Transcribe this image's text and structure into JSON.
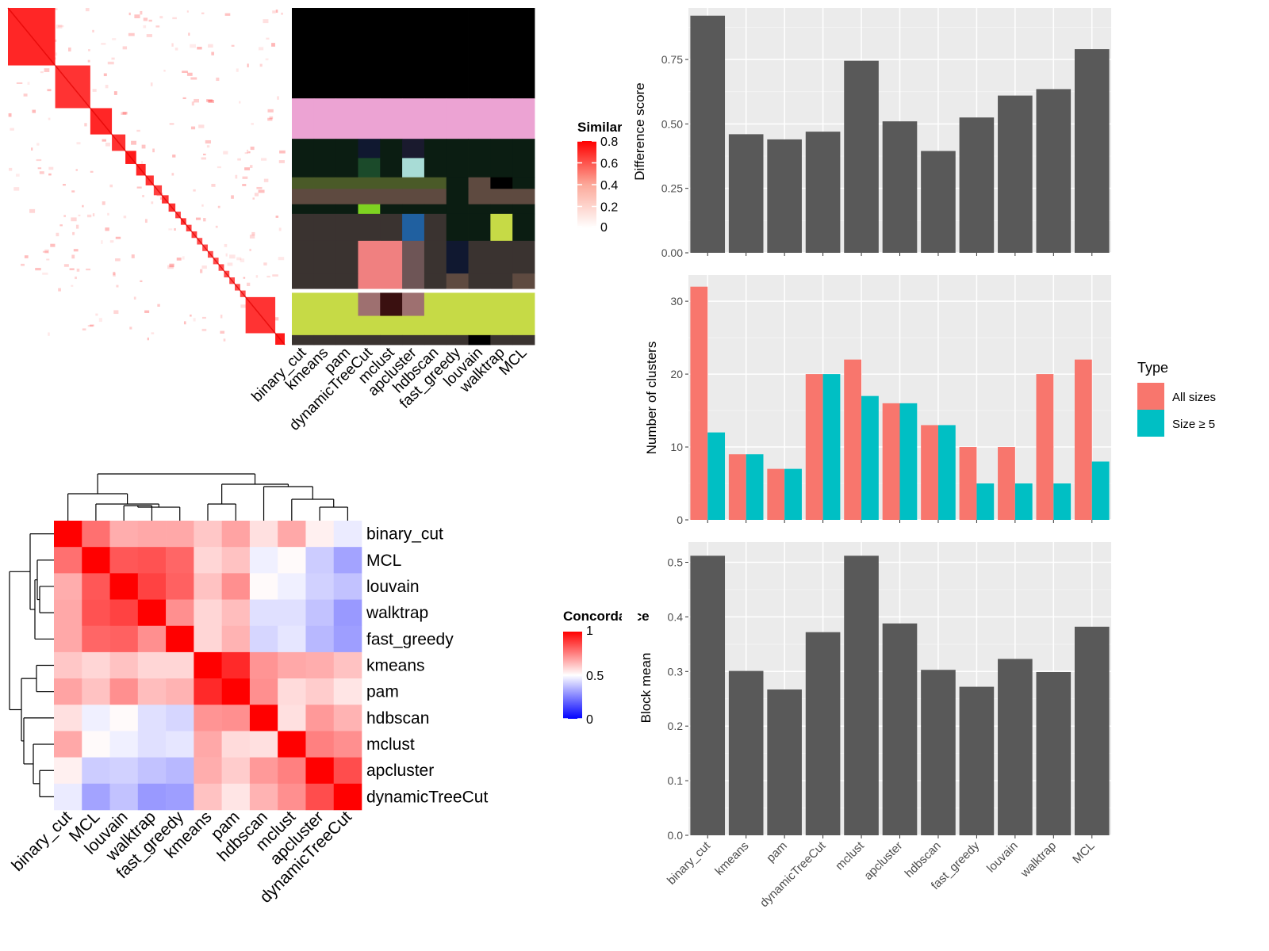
{
  "chart_data": [
    {
      "type": "heatmap",
      "panel": "similarity-heatmap",
      "legend_title": "Similarity",
      "legend_ticks": [
        "0",
        "0.2",
        "0.4",
        "0.6",
        "0.8"
      ],
      "column_labels": [
        "binary_cut",
        "kmeans",
        "pam",
        "dynamicTreeCut",
        "mclust",
        "apcluster",
        "hdbscan",
        "fast_greedy",
        "louvain",
        "walktrap",
        "MCL"
      ],
      "blocks": [
        {
          "size": 0.175,
          "intensity": 0.85
        },
        {
          "size": 0.13,
          "intensity": 0.8
        },
        {
          "size": 0.08,
          "intensity": 0.85
        },
        {
          "size": 0.05,
          "intensity": 0.8
        },
        {
          "size": 0.04,
          "intensity": 0.9
        },
        {
          "size": 0.035,
          "intensity": 0.85
        },
        {
          "size": 0.03,
          "intensity": 0.8
        },
        {
          "size": 0.03,
          "intensity": 0.75
        },
        {
          "size": 0.025,
          "intensity": 0.8
        },
        {
          "size": 0.025,
          "intensity": 0.8
        },
        {
          "size": 0.02,
          "intensity": 0.75
        },
        {
          "size": 0.02,
          "intensity": 0.8
        },
        {
          "size": 0.02,
          "intensity": 0.75
        },
        {
          "size": 0.02,
          "intensity": 0.75
        },
        {
          "size": 0.02,
          "intensity": 0.7
        },
        {
          "size": 0.02,
          "intensity": 0.7
        },
        {
          "size": 0.02,
          "intensity": 0.7
        },
        {
          "size": 0.02,
          "intensity": 0.7
        },
        {
          "size": 0.02,
          "intensity": 0.7
        },
        {
          "size": 0.02,
          "intensity": 0.7
        },
        {
          "size": 0.02,
          "intensity": 0.7
        },
        {
          "size": 0.02,
          "intensity": 0.7
        },
        {
          "size": 0.02,
          "intensity": 0.7
        },
        {
          "size": 0.11,
          "intensity": 0.8
        },
        {
          "size": 0.035,
          "intensity": 0.9
        }
      ],
      "annotation_bands": [
        {
          "size": 0.235,
          "colors": [
            "#000000",
            "#000000",
            "#000000",
            "#000000",
            "#000000",
            "#000000",
            "#000000",
            "#000000",
            "#000000",
            "#000000",
            "#000000"
          ]
        },
        {
          "size": 0.105,
          "colors": [
            "#ECA3D3",
            "#ECA3D3",
            "#ECA3D3",
            "#ECA3D3",
            "#ECA3D3",
            "#ECA3D3",
            "#ECA3D3",
            "#ECA3D3",
            "#ECA3D3",
            "#ECA3D3",
            "#ECA3D3"
          ]
        },
        {
          "size": 0.05,
          "colors": [
            "#0B1D12",
            "#0B1D12",
            "#0B1D12",
            "#101830",
            "#0B1D12",
            "#1A1A2E",
            "#0B1D12",
            "#0B1D12",
            "#0B1D12",
            "#0B1D12",
            "#0B1D12"
          ]
        },
        {
          "size": 0.05,
          "colors": [
            "#0B1D12",
            "#0B1D12",
            "#0B1D12",
            "#1B4A2A",
            "#0B1D12",
            "#A8DCD6",
            "#0B1D12",
            "#0B1D12",
            "#0B1D12",
            "#0B1D12",
            "#0B1D12"
          ]
        },
        {
          "size": 0.03,
          "colors": [
            "#4A5A28",
            "#4A5A28",
            "#4A5A28",
            "#4A5A28",
            "#4A5A28",
            "#4A5A28",
            "#4A5A28",
            "#0B1D12",
            "#5E4A40",
            "#000000",
            "#0B1D12"
          ]
        },
        {
          "size": 0.04,
          "colors": [
            "#5E4A40",
            "#5E4A40",
            "#5E4A40",
            "#5E4A40",
            "#5E4A40",
            "#5E4A40",
            "#5E4A40",
            "#0B1D12",
            "#5E4A40",
            "#5E4A40",
            "#5E4A40"
          ]
        },
        {
          "size": 0.025,
          "colors": [
            "#0B1D12",
            "#0B1D12",
            "#0B1D12",
            "#7ED321",
            "#0B1D12",
            "#0B1D12",
            "#0B1D12",
            "#0B1D12",
            "#0B1D12",
            "#0B1D12",
            "#0B1D12"
          ]
        },
        {
          "size": 0.07,
          "colors": [
            "#3A3330",
            "#3A3330",
            "#3A3330",
            "#3A3330",
            "#3A3330",
            "#2060A0",
            "#3A3330",
            "#0B1D12",
            "#0B1D12",
            "#C6DA46",
            "#0B1D12"
          ]
        },
        {
          "size": 0.085,
          "colors": [
            "#3A3330",
            "#3A3330",
            "#3A3330",
            "#F08080",
            "#F08080",
            "#6E5556",
            "#3A3330",
            "#101830",
            "#3A3330",
            "#3A3330",
            "#3A3330"
          ]
        },
        {
          "size": 0.04,
          "colors": [
            "#3A3330",
            "#3A3330",
            "#3A3330",
            "#F08080",
            "#F08080",
            "#6E5556",
            "#3A3330",
            "#5E4A40",
            "#3A3330",
            "#3A3330",
            "#5E4A40"
          ]
        },
        {
          "size": 0.01,
          "colors": [
            "#FFFFFF",
            "#FFFFFF",
            "#FFFFFF",
            "#FFFFFF",
            "#FFFFFF",
            "#FFFFFF",
            "#FFFFFF",
            "#FFFFFF",
            "#FFFFFF",
            "#FFFFFF",
            "#FFFFFF"
          ]
        },
        {
          "size": 0.06,
          "colors": [
            "#C6DA46",
            "#C6DA46",
            "#C6DA46",
            "#9E7070",
            "#3A1010",
            "#9E7070",
            "#C6DA46",
            "#C6DA46",
            "#C6DA46",
            "#C6DA46",
            "#C6DA46"
          ]
        },
        {
          "size": 0.05,
          "colors": [
            "#C6DA46",
            "#C6DA46",
            "#C6DA46",
            "#C6DA46",
            "#C6DA46",
            "#C6DA46",
            "#C6DA46",
            "#C6DA46",
            "#C6DA46",
            "#C6DA46",
            "#C6DA46"
          ]
        },
        {
          "size": 0.025,
          "colors": [
            "#3A3330",
            "#3A3330",
            "#3A3330",
            "#3A3330",
            "#3A3330",
            "#3A3330",
            "#3A3330",
            "#3A3330",
            "#000000",
            "#3A3330",
            "#3A3330"
          ]
        }
      ]
    },
    {
      "type": "heatmap",
      "panel": "concordance-heatmap",
      "legend_title": "Concordance",
      "legend_ticks": [
        "0",
        "0.5",
        "1"
      ],
      "row_labels": [
        "binary_cut",
        "MCL",
        "louvain",
        "walktrap",
        "fast_greedy",
        "kmeans",
        "pam",
        "hdbscan",
        "mclust",
        "apcluster",
        "dynamicTreeCut"
      ],
      "column_labels": [
        "binary_cut",
        "MCL",
        "louvain",
        "walktrap",
        "fast_greedy",
        "kmeans",
        "pam",
        "hdbscan",
        "mclust",
        "apcluster",
        "dynamicTreeCut"
      ],
      "values": [
        [
          1.0,
          0.78,
          0.66,
          0.67,
          0.67,
          0.61,
          0.68,
          0.56,
          0.67,
          0.53,
          0.46
        ],
        [
          0.78,
          1.0,
          0.83,
          0.84,
          0.8,
          0.58,
          0.62,
          0.47,
          0.51,
          0.4,
          0.32
        ],
        [
          0.66,
          0.83,
          1.0,
          0.87,
          0.81,
          0.62,
          0.72,
          0.51,
          0.47,
          0.41,
          0.38
        ],
        [
          0.67,
          0.84,
          0.87,
          1.0,
          0.72,
          0.58,
          0.63,
          0.44,
          0.44,
          0.38,
          0.3
        ],
        [
          0.67,
          0.8,
          0.81,
          0.72,
          1.0,
          0.58,
          0.65,
          0.42,
          0.45,
          0.36,
          0.31
        ],
        [
          0.61,
          0.58,
          0.62,
          0.58,
          0.58,
          1.0,
          0.92,
          0.71,
          0.67,
          0.66,
          0.62
        ],
        [
          0.68,
          0.62,
          0.72,
          0.63,
          0.65,
          0.92,
          1.0,
          0.72,
          0.57,
          0.6,
          0.55
        ],
        [
          0.56,
          0.47,
          0.51,
          0.44,
          0.42,
          0.71,
          0.72,
          1.0,
          0.56,
          0.7,
          0.65
        ],
        [
          0.67,
          0.51,
          0.47,
          0.44,
          0.45,
          0.67,
          0.57,
          0.56,
          1.0,
          0.75,
          0.72
        ],
        [
          0.53,
          0.4,
          0.41,
          0.38,
          0.36,
          0.66,
          0.6,
          0.7,
          0.75,
          1.0,
          0.85
        ],
        [
          0.46,
          0.32,
          0.38,
          0.3,
          0.31,
          0.62,
          0.55,
          0.65,
          0.72,
          0.85,
          1.0
        ]
      ]
    },
    {
      "type": "bar",
      "panel": "difference-score",
      "categories": [
        "binary_cut",
        "kmeans",
        "pam",
        "dynamicTreeCut",
        "mclust",
        "apcluster",
        "hdbscan",
        "fast_greedy",
        "louvain",
        "walktrap",
        "MCL"
      ],
      "values": [
        0.92,
        0.46,
        0.44,
        0.47,
        0.745,
        0.51,
        0.395,
        0.525,
        0.61,
        0.635,
        0.79
      ],
      "ylabel": "Difference score",
      "ylim": [
        0,
        0.95
      ],
      "yticks": [
        "0.00",
        "0.25",
        "0.50",
        "0.75"
      ],
      "grid": true,
      "bar_color": "#595959"
    },
    {
      "type": "bar",
      "panel": "number-of-clusters",
      "categories": [
        "binary_cut",
        "kmeans",
        "pam",
        "dynamicTreeCut",
        "mclust",
        "apcluster",
        "hdbscan",
        "fast_greedy",
        "louvain",
        "walktrap",
        "MCL"
      ],
      "series": [
        {
          "name": "All sizes",
          "values": [
            32,
            9,
            7,
            20,
            22,
            16,
            13,
            10,
            10,
            20,
            22
          ],
          "color": "#F8766D"
        },
        {
          "name": "Size ≥ 5",
          "values": [
            12,
            9,
            7,
            20,
            17,
            16,
            13,
            5,
            5,
            5,
            8
          ],
          "color": "#00BFC4"
        }
      ],
      "ylabel": "Number of clusters",
      "ylim": [
        0,
        33.6
      ],
      "yticks": [
        "0",
        "10",
        "20",
        "30"
      ],
      "legend_title": "Type",
      "legend_position": "right",
      "grid": true
    },
    {
      "type": "bar",
      "panel": "block-mean",
      "categories": [
        "binary_cut",
        "kmeans",
        "pam",
        "dynamicTreeCut",
        "mclust",
        "apcluster",
        "hdbscan",
        "fast_greedy",
        "louvain",
        "walktrap",
        "MCL"
      ],
      "values": [
        0.512,
        0.301,
        0.267,
        0.372,
        0.512,
        0.388,
        0.303,
        0.272,
        0.323,
        0.299,
        0.382
      ],
      "ylabel": "Block mean",
      "ylim": [
        0,
        0.537
      ],
      "yticks": [
        "0.0",
        "0.1",
        "0.2",
        "0.3",
        "0.4",
        "0.5"
      ],
      "grid": true,
      "bar_color": "#595959"
    }
  ]
}
